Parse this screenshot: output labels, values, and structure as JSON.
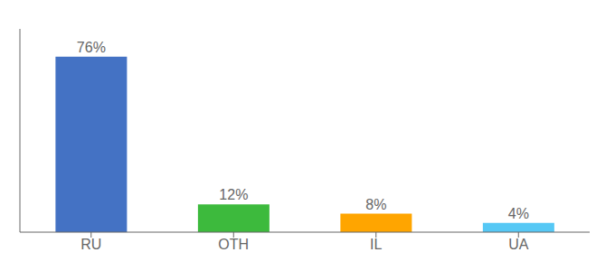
{
  "chart_data": {
    "type": "bar",
    "categories": [
      "RU",
      "OTH",
      "IL",
      "UA"
    ],
    "values": [
      76,
      12,
      8,
      4
    ],
    "value_labels": [
      "76%",
      "12%",
      "8%",
      "4%"
    ],
    "colors": [
      "#4472c4",
      "#3dba3d",
      "#ffa500",
      "#56c8f5"
    ],
    "ylim": [
      0,
      88
    ],
    "data_labels": true,
    "tick_labels": "x"
  }
}
